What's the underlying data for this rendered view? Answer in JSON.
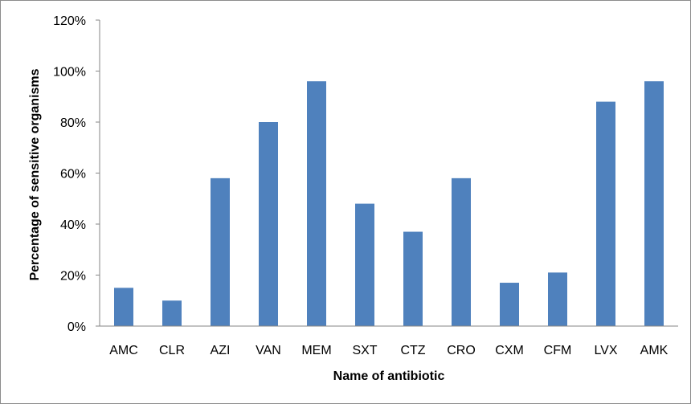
{
  "chart_data": {
    "type": "bar",
    "title": "",
    "xlabel": "Name of antibiotic",
    "ylabel": "Percentage of sensitive organisms",
    "categories": [
      "AMC",
      "CLR",
      "AZI",
      "VAN",
      "MEM",
      "SXT",
      "CTZ",
      "CRO",
      "CXM",
      "CFM",
      "LVX",
      "AMK"
    ],
    "series": [
      {
        "values": [
          15,
          10,
          58,
          80,
          96,
          48,
          37,
          58,
          17,
          21,
          88,
          96
        ],
        "color": "#4f81bd"
      }
    ],
    "ylim": [
      0,
      120
    ],
    "y_ticks": [
      "0%",
      "20%",
      "40%",
      "60%",
      "80%",
      "100%",
      "120%"
    ],
    "y_tick_values": [
      0,
      20,
      40,
      60,
      80,
      100,
      120
    ],
    "grid": false,
    "legend": "none"
  }
}
